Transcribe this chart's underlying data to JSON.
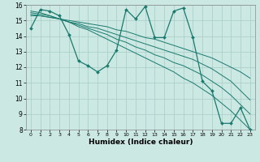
{
  "xlabel": "Humidex (Indice chaleur)",
  "bg_color": "#cbe8e3",
  "grid_color": "#a8ccc7",
  "line_color": "#1a7a6e",
  "x_values": [
    0,
    1,
    2,
    3,
    4,
    5,
    6,
    7,
    8,
    9,
    10,
    11,
    12,
    13,
    14,
    15,
    16,
    17,
    18,
    19,
    20,
    21,
    22,
    23
  ],
  "main_y": [
    14.5,
    15.7,
    15.6,
    15.3,
    14.1,
    12.4,
    12.1,
    11.7,
    12.1,
    13.1,
    15.7,
    15.1,
    15.9,
    13.9,
    13.9,
    15.6,
    15.8,
    13.9,
    11.1,
    10.5,
    8.4,
    8.4,
    9.4,
    8.0
  ],
  "trend1_y": [
    15.3,
    15.3,
    15.2,
    15.1,
    15.0,
    14.9,
    14.8,
    14.7,
    14.6,
    14.4,
    14.3,
    14.1,
    13.9,
    13.8,
    13.6,
    13.4,
    13.2,
    13.0,
    12.8,
    12.6,
    12.3,
    12.0,
    11.7,
    11.3
  ],
  "trend2_y": [
    15.4,
    15.3,
    15.2,
    15.1,
    14.9,
    14.8,
    14.6,
    14.5,
    14.3,
    14.1,
    13.9,
    13.7,
    13.5,
    13.3,
    13.1,
    12.9,
    12.7,
    12.5,
    12.2,
    11.9,
    11.5,
    11.1,
    10.5,
    9.9
  ],
  "trend3_y": [
    15.5,
    15.4,
    15.3,
    15.1,
    14.9,
    14.7,
    14.5,
    14.3,
    14.1,
    13.8,
    13.6,
    13.3,
    13.1,
    12.8,
    12.6,
    12.3,
    12.1,
    11.8,
    11.5,
    11.1,
    10.7,
    10.2,
    9.6,
    9.0
  ],
  "trend4_y": [
    15.6,
    15.5,
    15.3,
    15.1,
    14.9,
    14.6,
    14.4,
    14.1,
    13.8,
    13.5,
    13.2,
    12.9,
    12.6,
    12.3,
    12.0,
    11.7,
    11.3,
    11.0,
    10.6,
    10.2,
    9.7,
    9.2,
    8.6,
    8.0
  ],
  "ylim": [
    8,
    16
  ],
  "xlim_min": -0.5,
  "xlim_max": 23.5,
  "yticks": [
    8,
    9,
    10,
    11,
    12,
    13,
    14,
    15,
    16
  ],
  "xticks": [
    0,
    1,
    2,
    3,
    4,
    5,
    6,
    7,
    8,
    9,
    10,
    11,
    12,
    13,
    14,
    15,
    16,
    17,
    18,
    19,
    20,
    21,
    22,
    23
  ]
}
